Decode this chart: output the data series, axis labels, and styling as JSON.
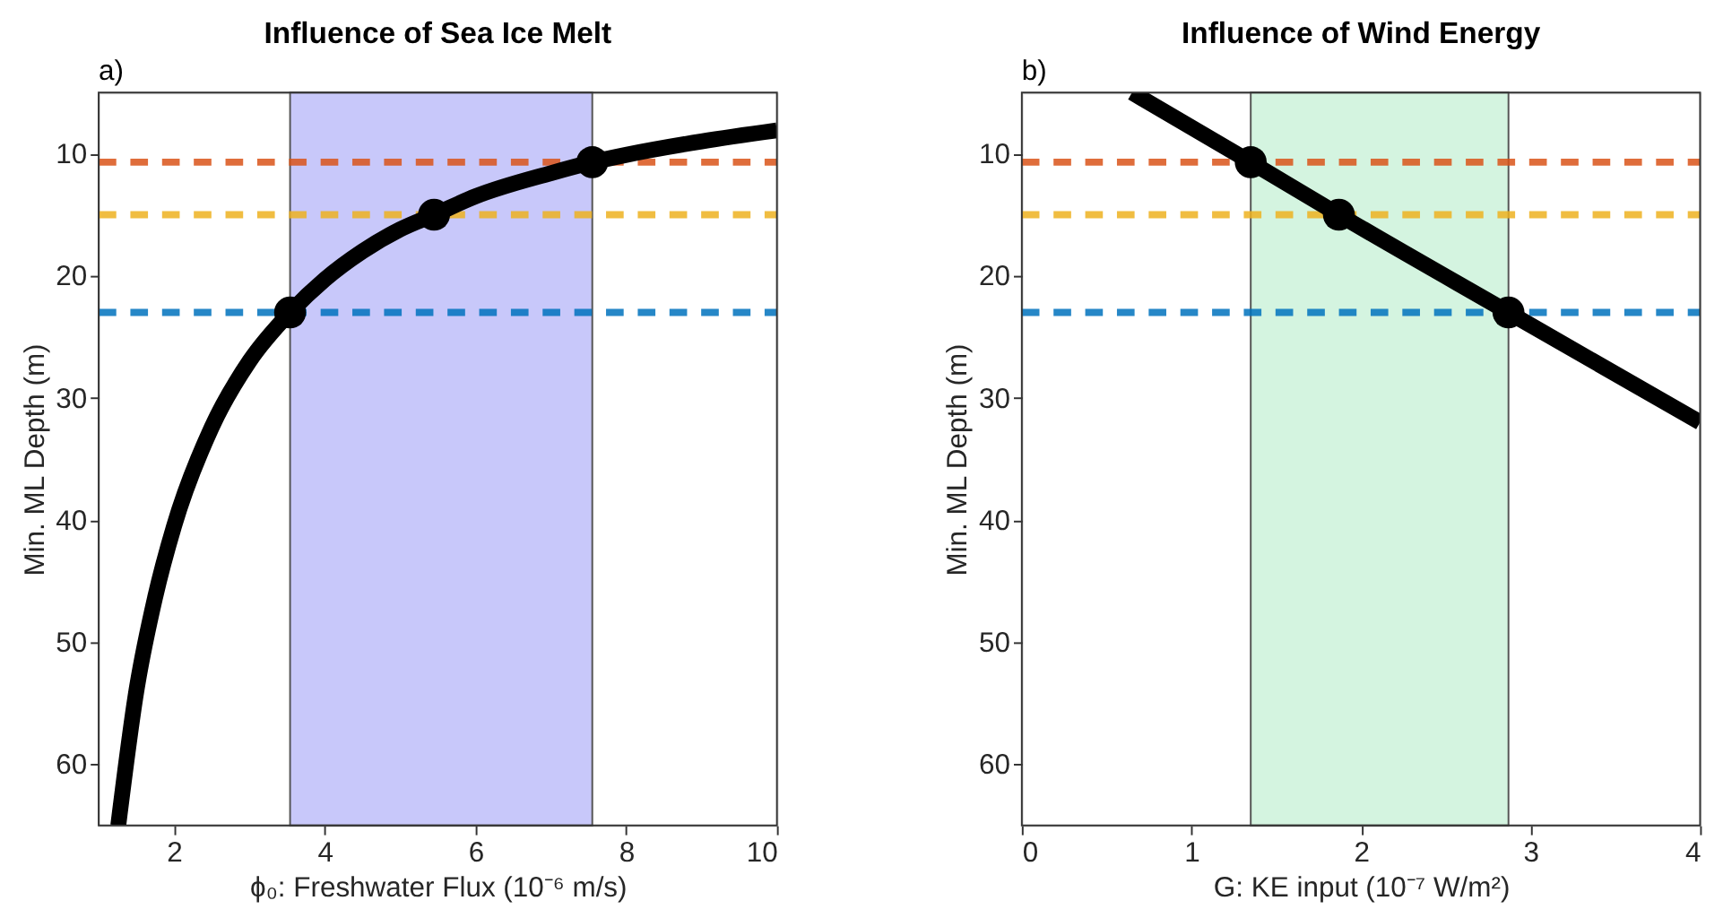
{
  "chart_data": [
    {
      "type": "line",
      "title": "Influence of Sea Ice Melt",
      "xlabel": "ϕ₀: Freshwater Flux (10⁻⁶ m/s)",
      "ylabel": "Min. ML Depth (m)",
      "annotations": [
        "a)"
      ],
      "xlim": [
        1,
        10
      ],
      "xticks": [
        2,
        4,
        6,
        8,
        10
      ],
      "ylim": [
        65,
        5
      ],
      "yticks": [
        10,
        20,
        30,
        40,
        50,
        60
      ],
      "series": [
        {
          "color": "#000000",
          "marker": "none",
          "line_style": "solid",
          "x": [
            1.26,
            1.5,
            1.75,
            2,
            2.5,
            3,
            3.54,
            4,
            4.5,
            5,
            5.45,
            6,
            7,
            7.55,
            8,
            9,
            10
          ],
          "values": [
            65,
            54,
            46.3,
            40.5,
            32.4,
            27,
            23,
            20.3,
            18,
            16.2,
            15,
            13.5,
            11.6,
            10.7,
            10.1,
            9,
            8.1
          ]
        },
        {
          "type": "scatter",
          "color": "#000000",
          "marker": "circle",
          "x": [
            3.54,
            5.45,
            7.55
          ],
          "values": [
            23,
            15,
            10.7
          ]
        }
      ],
      "ref_lines": [
        {
          "axis": "y",
          "value": 10.7,
          "color": "#d95319",
          "line_style": "dashed"
        },
        {
          "axis": "y",
          "value": 15,
          "color": "#edb120",
          "line_style": "dashed"
        },
        {
          "axis": "y",
          "value": 23,
          "color": "#0072bd",
          "line_style": "dashed"
        }
      ],
      "bands": [
        {
          "axis": "x",
          "from": 3.54,
          "to": 7.55,
          "color": "#c8c8fa"
        }
      ]
    },
    {
      "type": "line",
      "title": "Influence of Wind Energy",
      "xlabel": "G: KE input (10⁻⁷ W/m²)",
      "ylabel": "Min. ML Depth (m)",
      "annotations": [
        "b)"
      ],
      "xlim": [
        0,
        4
      ],
      "xticks": [
        0,
        1,
        2,
        3,
        4
      ],
      "ylim": [
        65,
        5
      ],
      "yticks": [
        10,
        20,
        30,
        40,
        50,
        60
      ],
      "series": [
        {
          "color": "#000000",
          "marker": "none",
          "line_style": "solid",
          "x": [
            0.65,
            1.35,
            1.87,
            2.87,
            4
          ],
          "values": [
            5,
            10.7,
            15,
            23,
            32
          ]
        },
        {
          "type": "scatter",
          "color": "#000000",
          "marker": "circle",
          "x": [
            1.35,
            1.87,
            2.87
          ],
          "values": [
            10.7,
            15,
            23
          ]
        }
      ],
      "ref_lines": [
        {
          "axis": "y",
          "value": 10.7,
          "color": "#d95319",
          "line_style": "dashed"
        },
        {
          "axis": "y",
          "value": 15,
          "color": "#edb120",
          "line_style": "dashed"
        },
        {
          "axis": "y",
          "value": 23,
          "color": "#0072bd",
          "line_style": "dashed"
        }
      ],
      "bands": [
        {
          "axis": "x",
          "from": 1.35,
          "to": 2.87,
          "color": "#d4f4e0"
        }
      ]
    }
  ]
}
